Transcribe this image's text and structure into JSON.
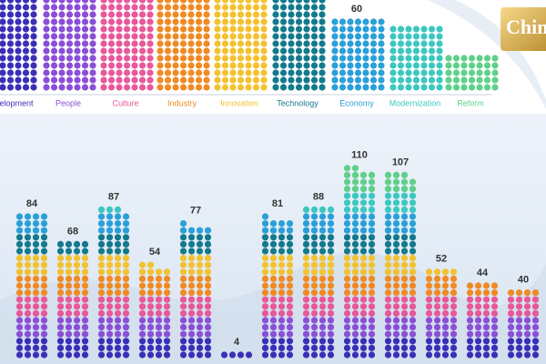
{
  "chart_data": {
    "type": "dot-column",
    "legend": [
      {
        "name": "Development",
        "color": "#3b2fb8"
      },
      {
        "name": "People",
        "color": "#8a4fd6"
      },
      {
        "name": "Culture",
        "color": "#e8589a"
      },
      {
        "name": "Industry",
        "color": "#f08a24"
      },
      {
        "name": "Innovation",
        "color": "#f2c230"
      },
      {
        "name": "Technology",
        "color": "#137a8c"
      },
      {
        "name": "Economy",
        "color": "#2a9fd8"
      },
      {
        "name": "Modernization",
        "color": "#3cc7c0"
      },
      {
        "name": "Reform",
        "color": "#5fd08a"
      }
    ],
    "annotation": "60",
    "values": [
      84,
      68,
      87,
      54,
      77,
      4,
      81,
      88,
      110,
      107,
      52,
      44,
      40
    ],
    "logo_text": "China Daily"
  }
}
